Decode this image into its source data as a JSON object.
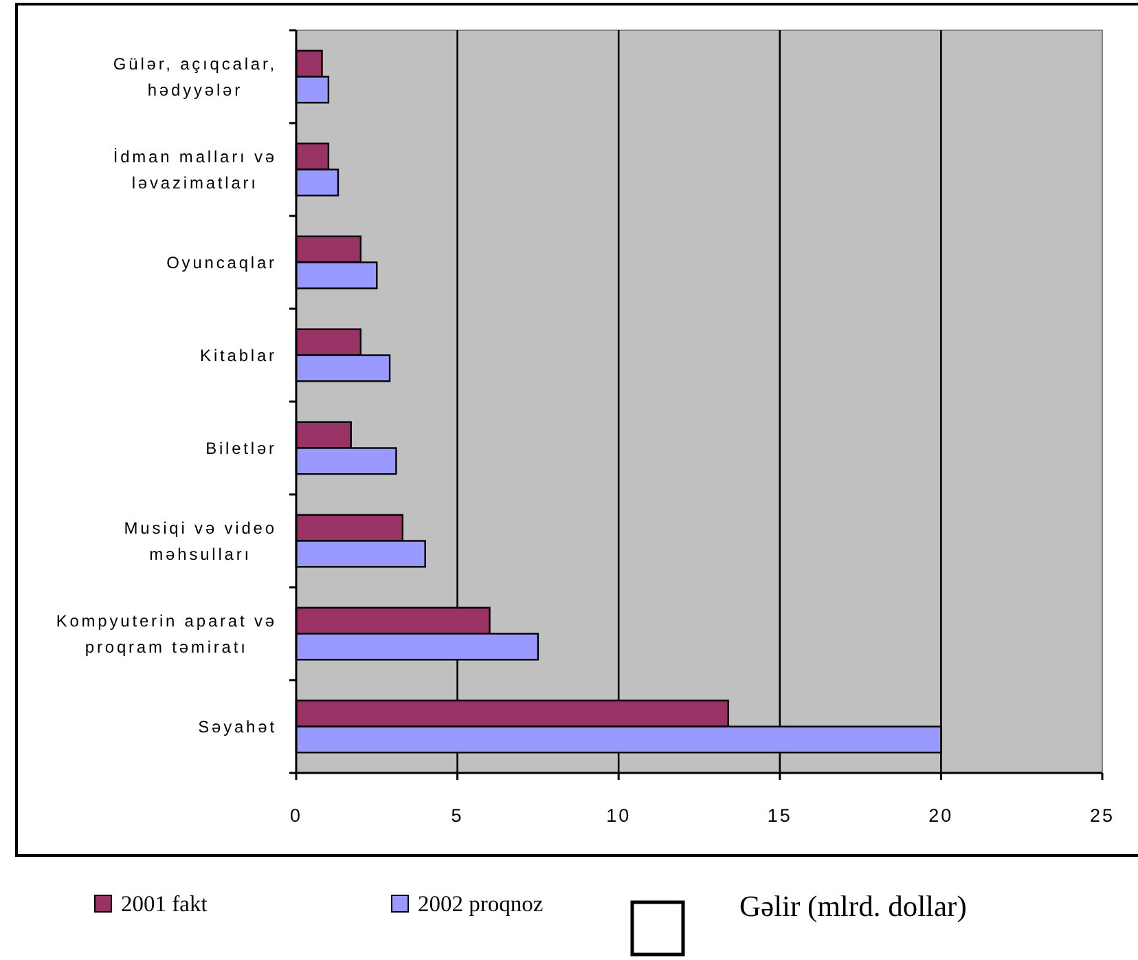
{
  "chart_data": {
    "type": "bar",
    "orientation": "horizontal",
    "categories": [
      "Gülər, açıqcalar, hədyyələr",
      "İdman malları və ləvazimatları",
      "Oyuncaqlar",
      "Kitablar",
      "Biletlər",
      "Musiqi və video məhsulları",
      "Kompyuterin aparat və proqram təmiratı",
      "Səyahət"
    ],
    "series": [
      {
        "name": "2001 fakt",
        "color": "#993366",
        "values": [
          0.8,
          1.0,
          2.0,
          2.0,
          1.7,
          3.3,
          6.0,
          13.4
        ]
      },
      {
        "name": "2002 proqnoz",
        "color": "#9999ff",
        "values": [
          1.0,
          1.3,
          2.5,
          2.9,
          3.1,
          4.0,
          7.5,
          20.0
        ]
      }
    ],
    "xlabel": "Gəlir (mlrd. dollar)",
    "xlim": [
      0,
      25
    ],
    "xticks": [
      0,
      5,
      10,
      15,
      20,
      25
    ],
    "grid": "x",
    "legend": "bottom"
  }
}
